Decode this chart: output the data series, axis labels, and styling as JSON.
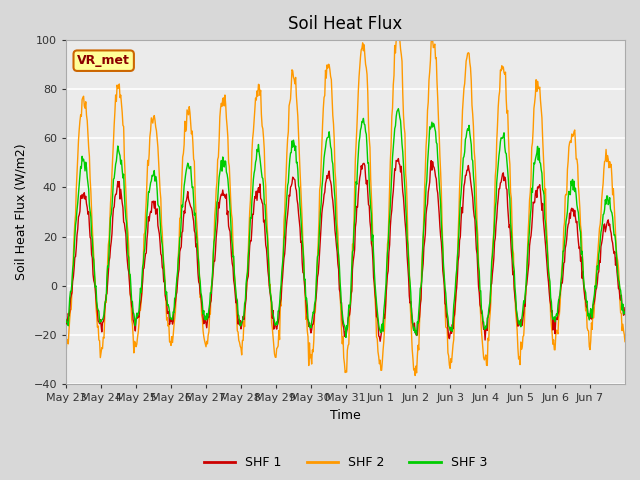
{
  "title": "Soil Heat Flux",
  "xlabel": "Time",
  "ylabel": "Soil Heat Flux (W/m2)",
  "ylim": [
    -40,
    100
  ],
  "yticks": [
    -40,
    -20,
    0,
    20,
    40,
    60,
    80,
    100
  ],
  "x_tick_labels": [
    "May 23",
    "May 24",
    "May 25",
    "May 26",
    "May 27",
    "May 28",
    "May 29",
    "May 30",
    "May 31",
    "Jun 1",
    "Jun 2",
    "Jun 3",
    "Jun 4",
    "Jun 5",
    "Jun 6",
    "Jun 7"
  ],
  "color_shf1": "#cc0000",
  "color_shf2": "#ff9900",
  "color_shf3": "#00cc00",
  "bg_color": "#d8d8d8",
  "plot_bg_color": "#ebebeb",
  "annotation_text": "VR_met",
  "annotation_bg": "#ffff99",
  "annotation_border": "#cc6600",
  "legend_labels": [
    "SHF 1",
    "SHF 2",
    "SHF 3"
  ],
  "n_days": 16,
  "points_per_day": 48
}
